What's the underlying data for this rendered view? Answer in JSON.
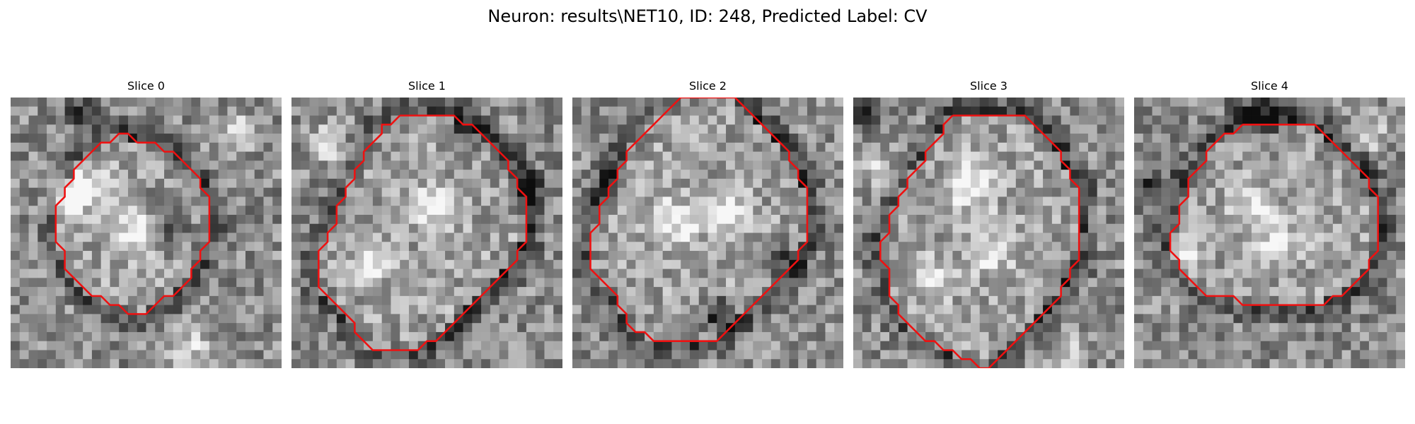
{
  "figure": {
    "title": "Neuron: results\\NET10, ID: 248, Predicted Label: CV"
  },
  "panels": [
    {
      "title": "Slice 0",
      "seed": 11,
      "spots": [
        [
          9,
          10,
          1.6,
          0.35
        ],
        [
          14,
          15,
          1.6,
          0.5
        ],
        [
          6,
          11,
          1.4,
          0.45
        ],
        [
          17,
          14,
          2.2,
          -0.3
        ],
        [
          8,
          2,
          1.2,
          -0.4
        ],
        [
          25,
          4,
          1.5,
          0.3
        ],
        [
          20,
          28,
          2.0,
          0.25
        ]
      ],
      "contour": [
        [
          14,
          5
        ],
        [
          15,
          5
        ],
        [
          16,
          5
        ],
        [
          17,
          6
        ],
        [
          18,
          6
        ],
        [
          19,
          7
        ],
        [
          20,
          8
        ],
        [
          21,
          9
        ],
        [
          21,
          10
        ],
        [
          22,
          11
        ],
        [
          22,
          12
        ],
        [
          22,
          13
        ],
        [
          22,
          14
        ],
        [
          22,
          15
        ],
        [
          22,
          16
        ],
        [
          21,
          17
        ],
        [
          21,
          18
        ],
        [
          20,
          19
        ],
        [
          20,
          20
        ],
        [
          19,
          21
        ],
        [
          18,
          22
        ],
        [
          17,
          22
        ],
        [
          16,
          23
        ],
        [
          15,
          24
        ],
        [
          14,
          24
        ],
        [
          13,
          24
        ],
        [
          12,
          23
        ],
        [
          11,
          23
        ],
        [
          10,
          22
        ],
        [
          9,
          22
        ],
        [
          8,
          21
        ],
        [
          7,
          20
        ],
        [
          6,
          19
        ],
        [
          6,
          18
        ],
        [
          6,
          17
        ],
        [
          5,
          16
        ],
        [
          5,
          15
        ],
        [
          5,
          14
        ],
        [
          5,
          13
        ],
        [
          5,
          12
        ],
        [
          6,
          11
        ],
        [
          6,
          10
        ],
        [
          7,
          9
        ],
        [
          7,
          8
        ],
        [
          8,
          7
        ],
        [
          9,
          6
        ],
        [
          10,
          5
        ],
        [
          11,
          5
        ],
        [
          12,
          4
        ],
        [
          13,
          4
        ],
        [
          14,
          5
        ]
      ]
    },
    {
      "title": "Slice 1",
      "seed": 23,
      "spots": [
        [
          9,
          18,
          1.4,
          0.4
        ],
        [
          16,
          12,
          1.5,
          0.45
        ],
        [
          19,
          4,
          1.3,
          -0.35
        ],
        [
          4,
          5,
          1.4,
          0.3
        ],
        [
          26,
          10,
          1.5,
          -0.3
        ]
      ],
      "contour": [
        [
          12,
          2
        ],
        [
          13,
          2
        ],
        [
          14,
          2
        ],
        [
          15,
          2
        ],
        [
          16,
          2
        ],
        [
          17,
          2
        ],
        [
          18,
          2
        ],
        [
          19,
          3
        ],
        [
          20,
          3
        ],
        [
          21,
          4
        ],
        [
          22,
          5
        ],
        [
          23,
          6
        ],
        [
          24,
          7
        ],
        [
          24,
          8
        ],
        [
          25,
          9
        ],
        [
          25,
          10
        ],
        [
          26,
          11
        ],
        [
          26,
          12
        ],
        [
          26,
          13
        ],
        [
          26,
          14
        ],
        [
          26,
          15
        ],
        [
          26,
          16
        ],
        [
          25,
          17
        ],
        [
          25,
          18
        ],
        [
          24,
          19
        ],
        [
          23,
          20
        ],
        [
          22,
          21
        ],
        [
          21,
          22
        ],
        [
          20,
          23
        ],
        [
          19,
          24
        ],
        [
          18,
          25
        ],
        [
          17,
          26
        ],
        [
          16,
          27
        ],
        [
          15,
          27
        ],
        [
          14,
          28
        ],
        [
          13,
          28
        ],
        [
          12,
          28
        ],
        [
          11,
          28
        ],
        [
          10,
          28
        ],
        [
          9,
          28
        ],
        [
          8,
          27
        ],
        [
          7,
          26
        ],
        [
          7,
          25
        ],
        [
          6,
          24
        ],
        [
          5,
          23
        ],
        [
          4,
          22
        ],
        [
          3,
          21
        ],
        [
          3,
          20
        ],
        [
          3,
          19
        ],
        [
          3,
          18
        ],
        [
          3,
          17
        ],
        [
          4,
          16
        ],
        [
          4,
          15
        ],
        [
          5,
          14
        ],
        [
          5,
          13
        ],
        [
          5,
          12
        ],
        [
          6,
          11
        ],
        [
          6,
          10
        ],
        [
          7,
          9
        ],
        [
          7,
          8
        ],
        [
          8,
          7
        ],
        [
          8,
          6
        ],
        [
          9,
          5
        ],
        [
          10,
          4
        ],
        [
          10,
          3
        ],
        [
          11,
          3
        ],
        [
          12,
          2
        ]
      ]
    },
    {
      "title": "Slice 2",
      "seed": 37,
      "spots": [
        [
          11,
          14,
          1.8,
          0.35
        ],
        [
          17,
          13,
          1.6,
          0.3
        ],
        [
          16,
          24,
          1.3,
          -0.45
        ],
        [
          4,
          10,
          1.3,
          -0.3
        ],
        [
          23,
          18,
          1.2,
          -0.35
        ]
      ],
      "contour": [
        [
          12,
          0
        ],
        [
          13,
          0
        ],
        [
          14,
          0
        ],
        [
          15,
          0
        ],
        [
          16,
          0
        ],
        [
          17,
          0
        ],
        [
          18,
          0
        ],
        [
          19,
          1
        ],
        [
          20,
          2
        ],
        [
          21,
          3
        ],
        [
          22,
          4
        ],
        [
          23,
          5
        ],
        [
          24,
          6
        ],
        [
          24,
          7
        ],
        [
          25,
          8
        ],
        [
          25,
          9
        ],
        [
          26,
          10
        ],
        [
          26,
          11
        ],
        [
          26,
          12
        ],
        [
          26,
          13
        ],
        [
          26,
          14
        ],
        [
          26,
          15
        ],
        [
          26,
          16
        ],
        [
          25,
          17
        ],
        [
          25,
          18
        ],
        [
          24,
          19
        ],
        [
          23,
          20
        ],
        [
          22,
          21
        ],
        [
          21,
          22
        ],
        [
          20,
          23
        ],
        [
          19,
          24
        ],
        [
          18,
          25
        ],
        [
          17,
          26
        ],
        [
          16,
          27
        ],
        [
          15,
          27
        ],
        [
          14,
          27
        ],
        [
          13,
          27
        ],
        [
          12,
          27
        ],
        [
          11,
          27
        ],
        [
          10,
          27
        ],
        [
          9,
          27
        ],
        [
          8,
          26
        ],
        [
          7,
          26
        ],
        [
          6,
          25
        ],
        [
          6,
          24
        ],
        [
          5,
          23
        ],
        [
          5,
          22
        ],
        [
          4,
          21
        ],
        [
          3,
          20
        ],
        [
          2,
          19
        ],
        [
          2,
          18
        ],
        [
          2,
          17
        ],
        [
          2,
          16
        ],
        [
          2,
          15
        ],
        [
          3,
          14
        ],
        [
          3,
          13
        ],
        [
          3,
          12
        ],
        [
          4,
          11
        ],
        [
          4,
          10
        ],
        [
          5,
          9
        ],
        [
          5,
          8
        ],
        [
          6,
          7
        ],
        [
          6,
          6
        ],
        [
          7,
          5
        ],
        [
          8,
          4
        ],
        [
          9,
          3
        ],
        [
          10,
          2
        ],
        [
          11,
          1
        ],
        [
          12,
          0
        ]
      ]
    },
    {
      "title": "Slice 3",
      "seed": 53,
      "spots": [
        [
          13,
          10,
          1.7,
          0.4
        ],
        [
          15,
          17,
          1.6,
          0.35
        ],
        [
          9,
          20,
          1.4,
          0.3
        ],
        [
          3,
          8,
          1.5,
          0.3
        ],
        [
          24,
          28,
          1.3,
          0.3
        ],
        [
          1,
          2,
          1.0,
          -0.45
        ]
      ],
      "contour": [
        [
          11,
          2
        ],
        [
          12,
          2
        ],
        [
          13,
          2
        ],
        [
          14,
          2
        ],
        [
          15,
          2
        ],
        [
          16,
          2
        ],
        [
          17,
          2
        ],
        [
          18,
          2
        ],
        [
          19,
          2
        ],
        [
          20,
          3
        ],
        [
          21,
          4
        ],
        [
          22,
          5
        ],
        [
          23,
          6
        ],
        [
          23,
          7
        ],
        [
          24,
          8
        ],
        [
          24,
          9
        ],
        [
          25,
          10
        ],
        [
          25,
          11
        ],
        [
          25,
          12
        ],
        [
          25,
          13
        ],
        [
          25,
          14
        ],
        [
          25,
          15
        ],
        [
          25,
          16
        ],
        [
          25,
          17
        ],
        [
          25,
          18
        ],
        [
          24,
          19
        ],
        [
          24,
          20
        ],
        [
          23,
          21
        ],
        [
          23,
          22
        ],
        [
          22,
          23
        ],
        [
          21,
          24
        ],
        [
          20,
          25
        ],
        [
          19,
          26
        ],
        [
          18,
          27
        ],
        [
          17,
          28
        ],
        [
          16,
          29
        ],
        [
          15,
          30
        ],
        [
          14,
          30
        ],
        [
          13,
          29
        ],
        [
          12,
          29
        ],
        [
          11,
          28
        ],
        [
          10,
          28
        ],
        [
          9,
          27
        ],
        [
          8,
          27
        ],
        [
          7,
          26
        ],
        [
          6,
          25
        ],
        [
          5,
          24
        ],
        [
          5,
          23
        ],
        [
          4,
          22
        ],
        [
          4,
          21
        ],
        [
          4,
          20
        ],
        [
          4,
          19
        ],
        [
          3,
          18
        ],
        [
          3,
          17
        ],
        [
          3,
          16
        ],
        [
          4,
          15
        ],
        [
          4,
          14
        ],
        [
          4,
          13
        ],
        [
          5,
          12
        ],
        [
          5,
          11
        ],
        [
          6,
          10
        ],
        [
          6,
          9
        ],
        [
          7,
          8
        ],
        [
          8,
          7
        ],
        [
          8,
          6
        ],
        [
          9,
          5
        ],
        [
          10,
          4
        ],
        [
          10,
          3
        ],
        [
          11,
          2
        ]
      ]
    },
    {
      "title": "Slice 4",
      "seed": 71,
      "spots": [
        [
          13,
          12,
          1.7,
          0.3
        ],
        [
          16,
          16,
          1.6,
          0.3
        ],
        [
          6,
          18,
          1.2,
          0.25
        ],
        [
          14,
          2,
          2.0,
          -0.4
        ],
        [
          2,
          10,
          1.5,
          -0.35
        ],
        [
          26,
          4,
          1.3,
          0.3
        ]
      ],
      "contour": [
        [
          12,
          3
        ],
        [
          13,
          3
        ],
        [
          14,
          3
        ],
        [
          15,
          3
        ],
        [
          16,
          3
        ],
        [
          17,
          3
        ],
        [
          18,
          3
        ],
        [
          19,
          3
        ],
        [
          20,
          3
        ],
        [
          21,
          4
        ],
        [
          22,
          5
        ],
        [
          23,
          6
        ],
        [
          24,
          7
        ],
        [
          25,
          8
        ],
        [
          26,
          9
        ],
        [
          26,
          10
        ],
        [
          27,
          11
        ],
        [
          27,
          12
        ],
        [
          27,
          13
        ],
        [
          27,
          14
        ],
        [
          27,
          15
        ],
        [
          27,
          16
        ],
        [
          27,
          17
        ],
        [
          26,
          18
        ],
        [
          26,
          19
        ],
        [
          25,
          20
        ],
        [
          24,
          21
        ],
        [
          23,
          22
        ],
        [
          22,
          22
        ],
        [
          21,
          23
        ],
        [
          20,
          23
        ],
        [
          19,
          23
        ],
        [
          18,
          23
        ],
        [
          17,
          23
        ],
        [
          16,
          23
        ],
        [
          15,
          23
        ],
        [
          14,
          23
        ],
        [
          13,
          23
        ],
        [
          12,
          23
        ],
        [
          11,
          22
        ],
        [
          10,
          22
        ],
        [
          9,
          22
        ],
        [
          8,
          22
        ],
        [
          7,
          21
        ],
        [
          6,
          20
        ],
        [
          5,
          19
        ],
        [
          5,
          18
        ],
        [
          4,
          17
        ],
        [
          4,
          16
        ],
        [
          4,
          15
        ],
        [
          5,
          14
        ],
        [
          5,
          13
        ],
        [
          5,
          12
        ],
        [
          6,
          11
        ],
        [
          6,
          10
        ],
        [
          6,
          9
        ],
        [
          7,
          8
        ],
        [
          8,
          7
        ],
        [
          8,
          6
        ],
        [
          9,
          5
        ],
        [
          10,
          4
        ],
        [
          11,
          4
        ],
        [
          12,
          3
        ]
      ]
    }
  ],
  "colors": {
    "contour": "#ee1111"
  },
  "grid_size": 30
}
